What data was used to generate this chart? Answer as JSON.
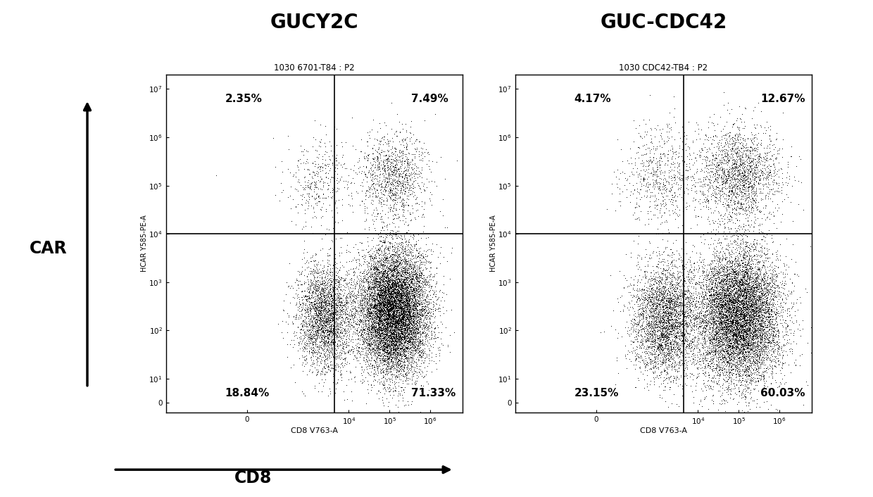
{
  "panel1_title": "GUCY2C",
  "panel2_title": "GUC-CDC42",
  "panel1_subtitle": "1030 6701-T84 : P2",
  "panel2_subtitle": "1030 CDC42-TB4 : P2",
  "ylabel": "HCAR Y585-PE-A",
  "xlabel": "CD8 V763-A",
  "car_label": "CAR",
  "cd8_label": "CD8",
  "panel1_quadrants": {
    "UL": "2.35%",
    "UR": "7.49%",
    "LL": "18.84%",
    "LR": "71.33%"
  },
  "panel2_quadrants": {
    "UL": "4.17%",
    "UR": "12.67%",
    "LL": "23.15%",
    "LR": "60.03%"
  },
  "bg_color": "#ffffff",
  "seed1": 42,
  "seed2": 123,
  "n_points": 15000
}
